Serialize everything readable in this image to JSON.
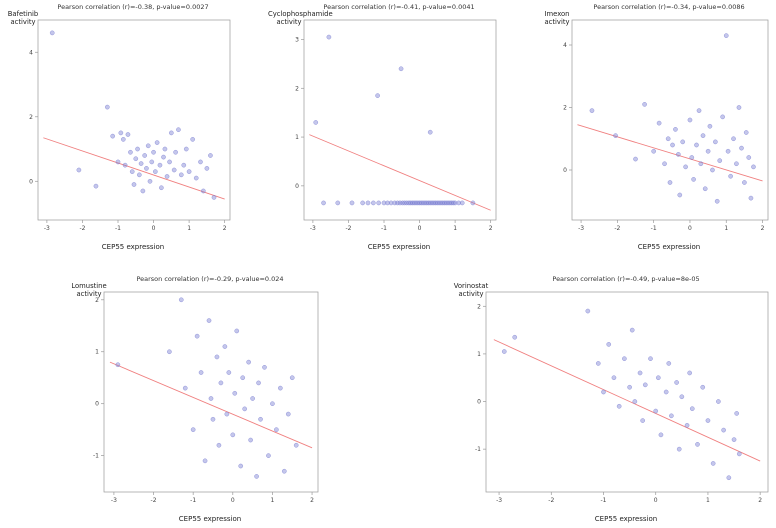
{
  "style": {
    "point_color": "#7d81d2",
    "line_color": "#f08080",
    "axis_color": "#999999",
    "text_color": "#444444",
    "background": "#ffffff"
  },
  "chart_data": [
    {
      "type": "scatter",
      "title": "Pearson correlation (r)=-0.38, p-value=0.0027",
      "ylabel": "Bafetinib\nactivity",
      "xlabel": "CEP55 expression",
      "xlim": [
        -3.25,
        2.15
      ],
      "ylim": [
        -1.2,
        5.0
      ],
      "xticks": [
        -3,
        -2,
        -1,
        0,
        1,
        2
      ],
      "yticks": [
        0,
        2,
        4
      ],
      "legend": "none",
      "grid": false,
      "regression": [
        [
          -3.1,
          1.35
        ],
        [
          2.0,
          -0.55
        ]
      ],
      "points": [
        [
          -2.85,
          4.6
        ],
        [
          -2.1,
          0.35
        ],
        [
          -1.62,
          -0.15
        ],
        [
          -1.3,
          2.3
        ],
        [
          -1.15,
          1.4
        ],
        [
          -1.0,
          0.6
        ],
        [
          -0.92,
          1.5
        ],
        [
          -0.85,
          1.3
        ],
        [
          -0.8,
          0.5
        ],
        [
          -0.72,
          1.45
        ],
        [
          -0.65,
          0.9
        ],
        [
          -0.6,
          0.3
        ],
        [
          -0.55,
          -0.1
        ],
        [
          -0.5,
          0.7
        ],
        [
          -0.45,
          1.0
        ],
        [
          -0.4,
          0.2
        ],
        [
          -0.35,
          0.55
        ],
        [
          -0.3,
          -0.3
        ],
        [
          -0.25,
          0.8
        ],
        [
          -0.2,
          0.4
        ],
        [
          -0.15,
          1.1
        ],
        [
          -0.1,
          0.0
        ],
        [
          -0.05,
          0.6
        ],
        [
          0.0,
          0.9
        ],
        [
          0.05,
          0.3
        ],
        [
          0.1,
          1.2
        ],
        [
          0.18,
          0.5
        ],
        [
          0.22,
          -0.2
        ],
        [
          0.28,
          0.75
        ],
        [
          0.32,
          1.0
        ],
        [
          0.38,
          0.15
        ],
        [
          0.45,
          0.6
        ],
        [
          0.5,
          1.5
        ],
        [
          0.58,
          0.35
        ],
        [
          0.62,
          0.9
        ],
        [
          0.7,
          1.6
        ],
        [
          0.78,
          0.2
        ],
        [
          0.85,
          0.5
        ],
        [
          0.92,
          1.0
        ],
        [
          1.0,
          0.3
        ],
        [
          1.1,
          1.3
        ],
        [
          1.2,
          0.1
        ],
        [
          1.32,
          0.6
        ],
        [
          1.4,
          -0.3
        ],
        [
          1.5,
          0.4
        ],
        [
          1.6,
          0.8
        ],
        [
          1.7,
          -0.5
        ]
      ]
    },
    {
      "type": "scatter",
      "title": "Pearson correlation (r)=-0.41, p-value=0.0041",
      "ylabel": "Cyclophosphamide\nactivity",
      "xlabel": "CEP55 expression",
      "xlim": [
        -3.25,
        2.15
      ],
      "ylim": [
        -0.7,
        3.4
      ],
      "xticks": [
        -3,
        -2,
        -1,
        0,
        1,
        2
      ],
      "yticks": [
        0,
        1,
        2,
        3
      ],
      "legend": "none",
      "grid": false,
      "regression": [
        [
          -3.1,
          1.05
        ],
        [
          2.0,
          -0.5
        ]
      ],
      "points": [
        [
          -2.92,
          1.3
        ],
        [
          -2.55,
          3.05
        ],
        [
          -1.18,
          1.85
        ],
        [
          -0.52,
          2.4
        ],
        [
          0.3,
          1.1
        ],
        [
          -2.7,
          -0.35
        ],
        [
          -2.3,
          -0.35
        ],
        [
          -1.9,
          -0.35
        ],
        [
          -1.6,
          -0.35
        ],
        [
          -1.45,
          -0.35
        ],
        [
          -1.3,
          -0.35
        ],
        [
          -1.15,
          -0.35
        ],
        [
          -1.0,
          -0.35
        ],
        [
          -0.9,
          -0.35
        ],
        [
          -0.8,
          -0.35
        ],
        [
          -0.7,
          -0.35
        ],
        [
          -0.62,
          -0.35
        ],
        [
          -0.55,
          -0.35
        ],
        [
          -0.48,
          -0.35
        ],
        [
          -0.42,
          -0.35
        ],
        [
          -0.36,
          -0.35
        ],
        [
          -0.3,
          -0.35
        ],
        [
          -0.25,
          -0.35
        ],
        [
          -0.2,
          -0.35
        ],
        [
          -0.15,
          -0.35
        ],
        [
          -0.1,
          -0.35
        ],
        [
          -0.05,
          -0.35
        ],
        [
          0.0,
          -0.35
        ],
        [
          0.05,
          -0.35
        ],
        [
          0.1,
          -0.35
        ],
        [
          0.15,
          -0.35
        ],
        [
          0.2,
          -0.35
        ],
        [
          0.25,
          -0.35
        ],
        [
          0.3,
          -0.35
        ],
        [
          0.35,
          -0.35
        ],
        [
          0.4,
          -0.35
        ],
        [
          0.45,
          -0.35
        ],
        [
          0.5,
          -0.35
        ],
        [
          0.55,
          -0.35
        ],
        [
          0.6,
          -0.35
        ],
        [
          0.65,
          -0.35
        ],
        [
          0.7,
          -0.35
        ],
        [
          0.75,
          -0.35
        ],
        [
          0.8,
          -0.35
        ],
        [
          0.85,
          -0.35
        ],
        [
          0.9,
          -0.35
        ],
        [
          0.95,
          -0.35
        ],
        [
          1.0,
          -0.35
        ],
        [
          1.1,
          -0.35
        ],
        [
          1.2,
          -0.35
        ],
        [
          1.5,
          -0.35
        ]
      ]
    },
    {
      "type": "scatter",
      "title": "Pearson correlation (r)=-0.34, p-value=0.0086",
      "ylabel": "Imexon\nactivity",
      "xlabel": "CEP55 expression",
      "xlim": [
        -3.25,
        2.15
      ],
      "ylim": [
        -1.6,
        4.8
      ],
      "xticks": [
        -3,
        -2,
        -1,
        0,
        1,
        2
      ],
      "yticks": [
        0,
        2,
        4
      ],
      "legend": "none",
      "grid": false,
      "regression": [
        [
          -3.1,
          1.45
        ],
        [
          2.0,
          -0.35
        ]
      ],
      "points": [
        [
          -2.7,
          1.9
        ],
        [
          -2.05,
          1.1
        ],
        [
          -1.5,
          0.35
        ],
        [
          -1.25,
          2.1
        ],
        [
          -1.0,
          0.6
        ],
        [
          -0.85,
          1.5
        ],
        [
          -0.7,
          0.2
        ],
        [
          -0.6,
          1.0
        ],
        [
          -0.55,
          -0.4
        ],
        [
          -0.48,
          0.8
        ],
        [
          -0.4,
          1.3
        ],
        [
          -0.32,
          0.5
        ],
        [
          -0.28,
          -0.8
        ],
        [
          -0.2,
          0.9
        ],
        [
          -0.12,
          0.1
        ],
        [
          0.0,
          1.6
        ],
        [
          0.05,
          0.4
        ],
        [
          0.1,
          -0.3
        ],
        [
          0.18,
          0.8
        ],
        [
          0.25,
          1.9
        ],
        [
          0.3,
          0.2
        ],
        [
          0.36,
          1.1
        ],
        [
          0.42,
          -0.6
        ],
        [
          0.5,
          0.6
        ],
        [
          0.55,
          1.4
        ],
        [
          0.62,
          0.0
        ],
        [
          0.7,
          0.9
        ],
        [
          0.75,
          -1.0
        ],
        [
          0.82,
          0.3
        ],
        [
          0.9,
          1.7
        ],
        [
          1.0,
          4.3
        ],
        [
          1.05,
          0.6
        ],
        [
          1.12,
          -0.2
        ],
        [
          1.2,
          1.0
        ],
        [
          1.28,
          0.2
        ],
        [
          1.35,
          2.0
        ],
        [
          1.42,
          0.7
        ],
        [
          1.5,
          -0.4
        ],
        [
          1.55,
          1.2
        ],
        [
          1.62,
          0.4
        ],
        [
          1.68,
          -0.9
        ],
        [
          1.75,
          0.1
        ]
      ]
    },
    {
      "type": "scatter",
      "title": "Pearson correlation (r)=-0.29, p-value=0.024",
      "ylabel": "Lomustine\nactivity",
      "xlabel": "CEP55 expression",
      "xlim": [
        -3.25,
        2.15
      ],
      "ylim": [
        -1.7,
        2.15
      ],
      "xticks": [
        -3,
        -2,
        -1,
        0,
        1,
        2
      ],
      "yticks": [
        -1,
        0,
        1,
        2
      ],
      "legend": "none",
      "grid": false,
      "regression": [
        [
          -3.1,
          0.8
        ],
        [
          2.0,
          -0.85
        ]
      ],
      "points": [
        [
          -2.9,
          0.75
        ],
        [
          -1.6,
          1.0
        ],
        [
          -1.3,
          2.0
        ],
        [
          -1.2,
          0.3
        ],
        [
          -1.0,
          -0.5
        ],
        [
          -0.9,
          1.3
        ],
        [
          -0.8,
          0.6
        ],
        [
          -0.7,
          -1.1
        ],
        [
          -0.6,
          1.6
        ],
        [
          -0.55,
          0.1
        ],
        [
          -0.5,
          -0.3
        ],
        [
          -0.4,
          0.9
        ],
        [
          -0.35,
          -0.8
        ],
        [
          -0.3,
          0.4
        ],
        [
          -0.2,
          1.1
        ],
        [
          -0.15,
          -0.2
        ],
        [
          -0.1,
          0.6
        ],
        [
          0.0,
          -0.6
        ],
        [
          0.05,
          0.2
        ],
        [
          0.1,
          1.4
        ],
        [
          0.2,
          -1.2
        ],
        [
          0.25,
          0.5
        ],
        [
          0.3,
          -0.1
        ],
        [
          0.4,
          0.8
        ],
        [
          0.45,
          -0.7
        ],
        [
          0.5,
          0.1
        ],
        [
          0.6,
          -1.4
        ],
        [
          0.65,
          0.4
        ],
        [
          0.7,
          -0.3
        ],
        [
          0.8,
          0.7
        ],
        [
          0.9,
          -1.0
        ],
        [
          1.0,
          0.0
        ],
        [
          1.1,
          -0.5
        ],
        [
          1.2,
          0.3
        ],
        [
          1.3,
          -1.3
        ],
        [
          1.4,
          -0.2
        ],
        [
          1.5,
          0.5
        ],
        [
          1.6,
          -0.8
        ]
      ]
    },
    {
      "type": "scatter",
      "title": "Pearson correlation (r)=-0.49, p-value=8e-05",
      "ylabel": "Vorinostat\nactivity",
      "xlabel": "CEP55 expression",
      "xlim": [
        -3.25,
        2.15
      ],
      "ylim": [
        -1.9,
        2.3
      ],
      "xticks": [
        -3,
        -2,
        -1,
        0,
        1,
        2
      ],
      "yticks": [
        -1,
        0,
        1,
        2
      ],
      "legend": "none",
      "grid": false,
      "regression": [
        [
          -3.1,
          1.3
        ],
        [
          2.0,
          -1.25
        ]
      ],
      "points": [
        [
          -2.9,
          1.05
        ],
        [
          -2.7,
          1.35
        ],
        [
          -1.3,
          1.9
        ],
        [
          -1.1,
          0.8
        ],
        [
          -1.0,
          0.2
        ],
        [
          -0.9,
          1.2
        ],
        [
          -0.8,
          0.5
        ],
        [
          -0.7,
          -0.1
        ],
        [
          -0.6,
          0.9
        ],
        [
          -0.5,
          0.3
        ],
        [
          -0.45,
          1.5
        ],
        [
          -0.4,
          0.0
        ],
        [
          -0.3,
          0.6
        ],
        [
          -0.25,
          -0.4
        ],
        [
          -0.2,
          0.35
        ],
        [
          -0.1,
          0.9
        ],
        [
          0.0,
          -0.2
        ],
        [
          0.05,
          0.5
        ],
        [
          0.1,
          -0.7
        ],
        [
          0.2,
          0.2
        ],
        [
          0.25,
          0.8
        ],
        [
          0.3,
          -0.3
        ],
        [
          0.4,
          0.4
        ],
        [
          0.45,
          -1.0
        ],
        [
          0.5,
          0.1
        ],
        [
          0.6,
          -0.5
        ],
        [
          0.65,
          0.6
        ],
        [
          0.7,
          -0.15
        ],
        [
          0.8,
          -0.9
        ],
        [
          0.9,
          0.3
        ],
        [
          1.0,
          -0.4
        ],
        [
          1.1,
          -1.3
        ],
        [
          1.2,
          0.0
        ],
        [
          1.3,
          -0.6
        ],
        [
          1.4,
          -1.6
        ],
        [
          1.5,
          -0.8
        ],
        [
          1.55,
          -0.25
        ],
        [
          1.6,
          -1.1
        ]
      ]
    }
  ]
}
